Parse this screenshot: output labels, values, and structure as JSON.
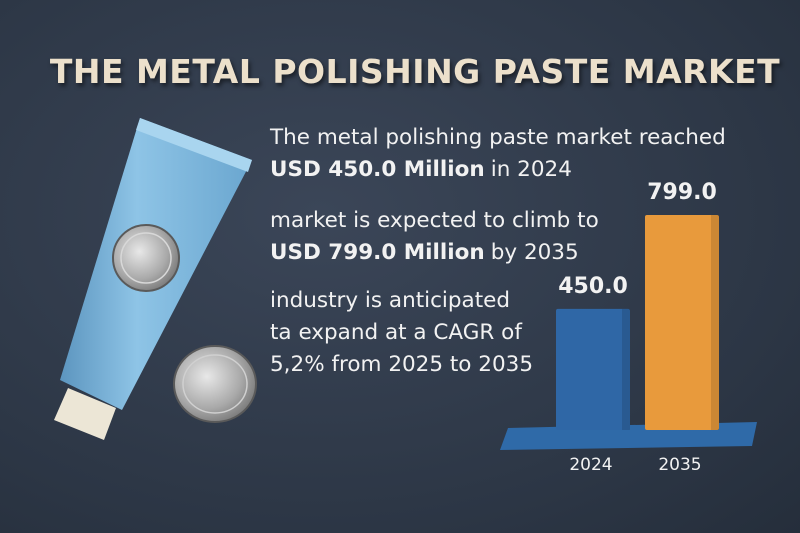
{
  "title": "THE METAL POLISHING PASTE MARKET",
  "statements": [
    {
      "lines": [
        [
          {
            "text": "The metal polishing paste market reached",
            "bold": false
          }
        ],
        [
          {
            "text": "USD 450.0 Million",
            "bold": true
          },
          {
            "text": "in 2024",
            "bold": false
          }
        ]
      ]
    },
    {
      "lines": [
        [
          {
            "text": "market is expected to climb to",
            "bold": false
          }
        ],
        [
          {
            "text": "USD 799.0 Million",
            "bold": true
          },
          {
            "text": "by 2035",
            "bold": false
          }
        ]
      ]
    },
    {
      "lines": [
        [
          {
            "text": "industry is anticipated",
            "bold": false
          }
        ],
        [
          {
            "text": "ta expand at a CAGR of",
            "bold": false
          }
        ],
        [
          {
            "text": "5,2% from 2025 to 2035",
            "bold": false
          }
        ]
      ]
    }
  ],
  "chart_data": {
    "type": "bar",
    "categories": [
      "2024",
      "2035"
    ],
    "values": [
      450.0,
      799.0
    ],
    "value_labels": [
      "450.0",
      "799.0"
    ],
    "series_colors": [
      "#2f67a6",
      "#e89a3c"
    ]
  }
}
